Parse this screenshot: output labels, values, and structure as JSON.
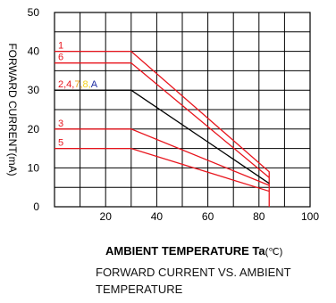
{
  "chart_data": {
    "type": "line",
    "xlim": [
      0,
      100
    ],
    "ylim": [
      0,
      50
    ],
    "x_ticks": [
      20,
      40,
      60,
      80,
      100
    ],
    "y_ticks": [
      0,
      10,
      20,
      30,
      40,
      50
    ],
    "grid": true,
    "ylabel": "FORWARD CURRENT(mA)",
    "xlabel": "AMBIENT TEMPERATURE Ta",
    "xlabel_unit": "(℃)",
    "series": [
      {
        "key": "1",
        "label": "1",
        "color": "#e8141c",
        "x": [
          0,
          30,
          84,
          84
        ],
        "y": [
          40,
          40,
          9,
          0
        ]
      },
      {
        "key": "6",
        "label": "6",
        "color": "#e8141c",
        "x": [
          0,
          30,
          84
        ],
        "y": [
          37,
          37,
          7.5
        ]
      },
      {
        "key": "grp",
        "color": "#000000",
        "x": [
          0,
          30,
          84
        ],
        "y": [
          30,
          30,
          6
        ]
      },
      {
        "key": "3",
        "label": "3",
        "color": "#e8141c",
        "x": [
          0,
          30,
          84
        ],
        "y": [
          20,
          20,
          5.5
        ]
      },
      {
        "key": "5",
        "label": "5",
        "color": "#e8141c",
        "x": [
          0,
          30,
          84
        ],
        "y": [
          15,
          15,
          4
        ]
      }
    ],
    "group_label_parts": [
      {
        "text": "2,4,",
        "color": "#e8141c"
      },
      {
        "text": "7,",
        "color": "#f4a41c"
      },
      {
        "text": "8,",
        "color": "#f4d21c"
      },
      {
        "text": "A",
        "color": "#1c2aa0"
      }
    ]
  },
  "caption": "FORWARD CURRENT VS. AMBIENT TEMPERATURE"
}
